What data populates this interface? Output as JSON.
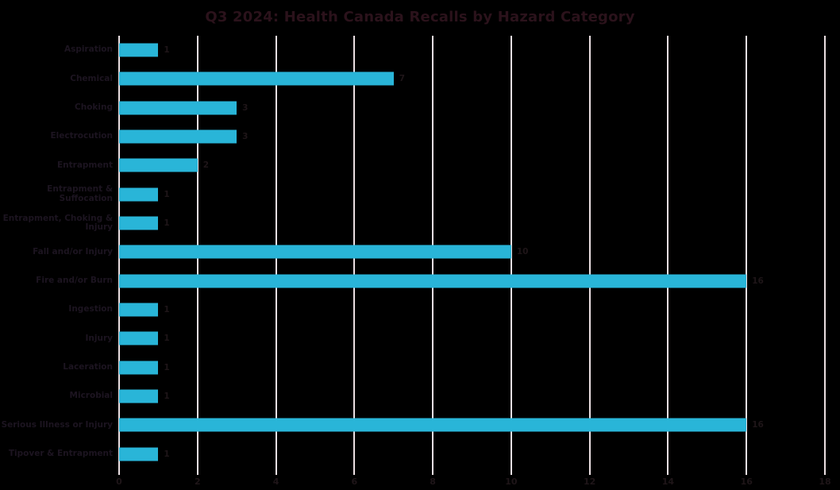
{
  "chart_data": {
    "type": "bar",
    "orientation": "horizontal",
    "title": "Q3 2024: Health Canada Recalls by Hazard Category",
    "categories": [
      "Aspiration",
      "Chemical",
      "Choking",
      "Electrocution",
      "Entrapment",
      "Entrapment & Suffocation",
      "Entrapment, Choking & Injury",
      "Fall and/or Injury",
      "Fire and/or Burn",
      "Ingestion",
      "Injury",
      "Laceration",
      "Microbial",
      "Serious Illness or Injury",
      "Tipover & Entrapment"
    ],
    "values": [
      1,
      7,
      3,
      3,
      2,
      1,
      1,
      10,
      16,
      1,
      1,
      1,
      1,
      16,
      1
    ],
    "data_labels": [
      1,
      7,
      3,
      3,
      2,
      1,
      1,
      10,
      16,
      1,
      1,
      1,
      1,
      16,
      1
    ],
    "xlabel": "",
    "ylabel": "",
    "xlim": [
      0,
      18
    ],
    "xticks": [
      0,
      2,
      4,
      6,
      8,
      10,
      12,
      14,
      16,
      18
    ],
    "grid": "vertical",
    "legend": "none",
    "colors": {
      "background": "#000000",
      "bar": "#29b5d8",
      "gridline": "#eadfe2",
      "axis_tick": "#eadfe2",
      "title_text": "#2b121b",
      "category_text": "#1c1420",
      "value_text": "#1e1518",
      "tick_text": "#1e1518"
    }
  }
}
